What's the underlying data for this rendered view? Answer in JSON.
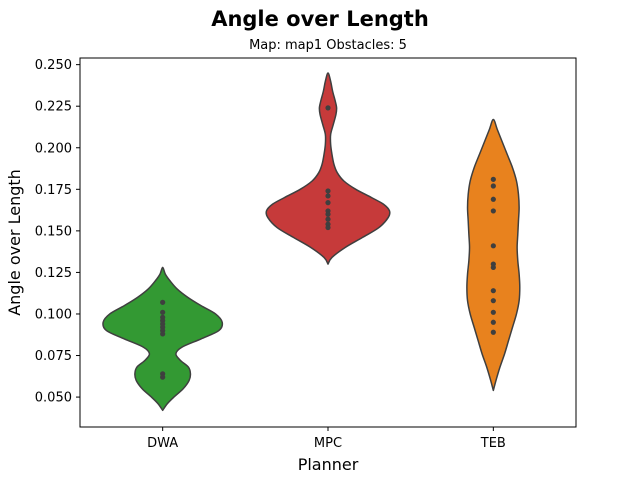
{
  "chart_data": {
    "type": "violin",
    "title": "Angle over Length",
    "subtitle": "Map: map1 Obstacles: 5",
    "xlabel": "Planner",
    "ylabel": "Angle over Length",
    "ylim": [
      0.032,
      0.254
    ],
    "yticks": [
      "0.050",
      "0.075",
      "0.100",
      "0.125",
      "0.150",
      "0.175",
      "0.200",
      "0.225",
      "0.250"
    ],
    "ytick_values": [
      0.05,
      0.075,
      0.1,
      0.125,
      0.15,
      0.175,
      0.2,
      0.225,
      0.25
    ],
    "grid": false,
    "categories": [
      "DWA",
      "MPC",
      "TEB"
    ],
    "series": [
      {
        "color": "#339933",
        "points": [
          0.107,
          0.101,
          0.098,
          0.096,
          0.094,
          0.092,
          0.09,
          0.088,
          0.064,
          0.062
        ],
        "profile": [
          [
            0.042,
            0.0
          ],
          [
            0.046,
            0.07
          ],
          [
            0.05,
            0.17
          ],
          [
            0.055,
            0.31
          ],
          [
            0.06,
            0.4
          ],
          [
            0.064,
            0.42
          ],
          [
            0.068,
            0.39
          ],
          [
            0.072,
            0.27
          ],
          [
            0.076,
            0.2
          ],
          [
            0.08,
            0.29
          ],
          [
            0.085,
            0.58
          ],
          [
            0.09,
            0.85
          ],
          [
            0.095,
            0.9
          ],
          [
            0.1,
            0.8
          ],
          [
            0.105,
            0.58
          ],
          [
            0.11,
            0.38
          ],
          [
            0.115,
            0.22
          ],
          [
            0.12,
            0.11
          ],
          [
            0.124,
            0.04
          ],
          [
            0.128,
            0.0
          ]
        ]
      },
      {
        "color": "#c63a3a",
        "points": [
          0.224,
          0.174,
          0.171,
          0.167,
          0.162,
          0.16,
          0.157,
          0.154,
          0.152
        ],
        "profile": [
          [
            0.13,
            0.0
          ],
          [
            0.134,
            0.06
          ],
          [
            0.14,
            0.26
          ],
          [
            0.146,
            0.52
          ],
          [
            0.152,
            0.77
          ],
          [
            0.158,
            0.91
          ],
          [
            0.162,
            0.93
          ],
          [
            0.166,
            0.84
          ],
          [
            0.17,
            0.66
          ],
          [
            0.175,
            0.42
          ],
          [
            0.18,
            0.24
          ],
          [
            0.185,
            0.14
          ],
          [
            0.19,
            0.09
          ],
          [
            0.196,
            0.06
          ],
          [
            0.202,
            0.04
          ],
          [
            0.208,
            0.04
          ],
          [
            0.214,
            0.08
          ],
          [
            0.22,
            0.12
          ],
          [
            0.224,
            0.13
          ],
          [
            0.228,
            0.11
          ],
          [
            0.234,
            0.07
          ],
          [
            0.24,
            0.04
          ],
          [
            0.245,
            0.0
          ]
        ]
      },
      {
        "color": "#e8821e",
        "points": [
          0.181,
          0.177,
          0.169,
          0.162,
          0.141,
          0.13,
          0.128,
          0.114,
          0.108,
          0.101,
          0.095,
          0.089
        ],
        "profile": [
          [
            0.054,
            0.0
          ],
          [
            0.06,
            0.04
          ],
          [
            0.068,
            0.1
          ],
          [
            0.076,
            0.17
          ],
          [
            0.084,
            0.23
          ],
          [
            0.092,
            0.29
          ],
          [
            0.1,
            0.35
          ],
          [
            0.108,
            0.39
          ],
          [
            0.116,
            0.4
          ],
          [
            0.124,
            0.39
          ],
          [
            0.132,
            0.37
          ],
          [
            0.14,
            0.36
          ],
          [
            0.148,
            0.37
          ],
          [
            0.156,
            0.38
          ],
          [
            0.164,
            0.39
          ],
          [
            0.172,
            0.38
          ],
          [
            0.18,
            0.35
          ],
          [
            0.188,
            0.29
          ],
          [
            0.196,
            0.21
          ],
          [
            0.204,
            0.13
          ],
          [
            0.211,
            0.06
          ],
          [
            0.217,
            0.0
          ]
        ]
      }
    ]
  }
}
